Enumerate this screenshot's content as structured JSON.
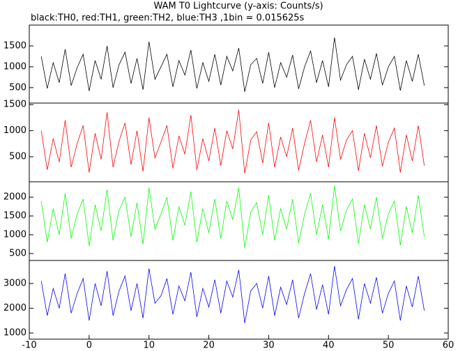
{
  "chart_data": {
    "type": "line",
    "title": "WAM T0 Lightcurve (y-axis: Counts/s)",
    "subtitle": "black:TH0, red:TH1, green:TH2, blue:TH3 ,1bin = 0.015625s",
    "x": [
      -8,
      -7,
      -6,
      -5,
      -4,
      -3,
      -2,
      -1,
      0,
      1,
      2,
      3,
      4,
      5,
      6,
      7,
      8,
      9,
      10,
      11,
      12,
      13,
      14,
      15,
      16,
      17,
      18,
      19,
      20,
      21,
      22,
      23,
      24,
      25,
      26,
      27,
      28,
      29,
      30,
      31,
      32,
      33,
      34,
      35,
      36,
      37,
      38,
      39,
      40,
      41,
      42,
      43,
      44,
      45,
      46,
      47,
      48,
      49,
      50,
      51,
      52,
      53,
      54,
      55,
      56
    ],
    "xlim": [
      -10,
      60
    ],
    "xticks": [
      -10,
      0,
      10,
      20,
      30,
      40,
      50,
      60
    ],
    "series": [
      {
        "color": "#000000",
        "ylim": [
          130,
          2000
        ],
        "yticks": [
          500,
          1000,
          1500
        ],
        "values": [
          1250,
          480,
          1100,
          620,
          1420,
          550,
          980,
          1300,
          420,
          1150,
          700,
          1500,
          500,
          1050,
          1350,
          600,
          1200,
          450,
          1600,
          700,
          1000,
          1300,
          520,
          1150,
          800,
          1400,
          480,
          1100,
          650,
          1300,
          560,
          1250,
          900,
          1450,
          400,
          1050,
          1200,
          600,
          1350,
          500,
          1100,
          750,
          1280,
          470,
          1000,
          1380,
          620,
          1150,
          520,
          1700,
          680,
          1050,
          1250,
          450,
          1180,
          700,
          1320,
          560,
          1000,
          1250,
          430,
          1150,
          650,
          1300,
          550
        ]
      },
      {
        "color": "#ff0000",
        "ylim": [
          20,
          1530
        ],
        "yticks": [
          500,
          1000,
          1500
        ],
        "values": [
          1000,
          250,
          850,
          400,
          1200,
          300,
          750,
          1100,
          200,
          950,
          450,
          1350,
          300,
          800,
          1150,
          350,
          1000,
          220,
          1250,
          480,
          780,
          1100,
          280,
          900,
          550,
          1300,
          250,
          850,
          420,
          1050,
          330,
          1000,
          650,
          1400,
          180,
          820,
          980,
          380,
          1150,
          300,
          880,
          500,
          1050,
          240,
          760,
          1200,
          400,
          920,
          300,
          1250,
          450,
          820,
          1000,
          230,
          950,
          480,
          1100,
          320,
          780,
          1050,
          200,
          920,
          420,
          1100,
          330
        ]
      },
      {
        "color": "#00ff00",
        "ylim": [
          315,
          2410
        ],
        "yticks": [
          500,
          1000,
          1500,
          2000
        ],
        "values": [
          1900,
          800,
          1700,
          1000,
          2100,
          900,
          1550,
          1950,
          700,
          1800,
          1100,
          2200,
          850,
          1650,
          2000,
          950,
          1850,
          750,
          2250,
          1150,
          1550,
          2000,
          850,
          1750,
          1250,
          2150,
          800,
          1700,
          1050,
          1950,
          900,
          1900,
          1400,
          2250,
          650,
          1600,
          1850,
          1000,
          2050,
          850,
          1700,
          1150,
          1950,
          780,
          1550,
          2100,
          1000,
          1800,
          880,
          2300,
          1100,
          1650,
          1950,
          760,
          1800,
          1150,
          2000,
          900,
          1550,
          1900,
          720,
          1750,
          1050,
          2050,
          950
        ]
      },
      {
        "color": "#0000ff",
        "ylim": [
          750,
          3930
        ],
        "yticks": [
          1000,
          2000,
          3000
        ],
        "values": [
          3100,
          1700,
          2800,
          2000,
          3400,
          1800,
          2600,
          3200,
          1500,
          3000,
          2100,
          3500,
          1700,
          2700,
          3300,
          1900,
          3000,
          1600,
          3600,
          2200,
          2500,
          3200,
          1750,
          2900,
          2300,
          3450,
          1650,
          2800,
          2050,
          3150,
          1800,
          3100,
          2450,
          3550,
          1400,
          2700,
          3000,
          2000,
          3300,
          1700,
          2850,
          2150,
          3150,
          1600,
          2600,
          3400,
          1950,
          2950,
          1750,
          3700,
          2100,
          2750,
          3200,
          1550,
          3000,
          2200,
          3250,
          1800,
          2600,
          3100,
          1500,
          2900,
          2050,
          3300,
          1900
        ]
      }
    ]
  }
}
